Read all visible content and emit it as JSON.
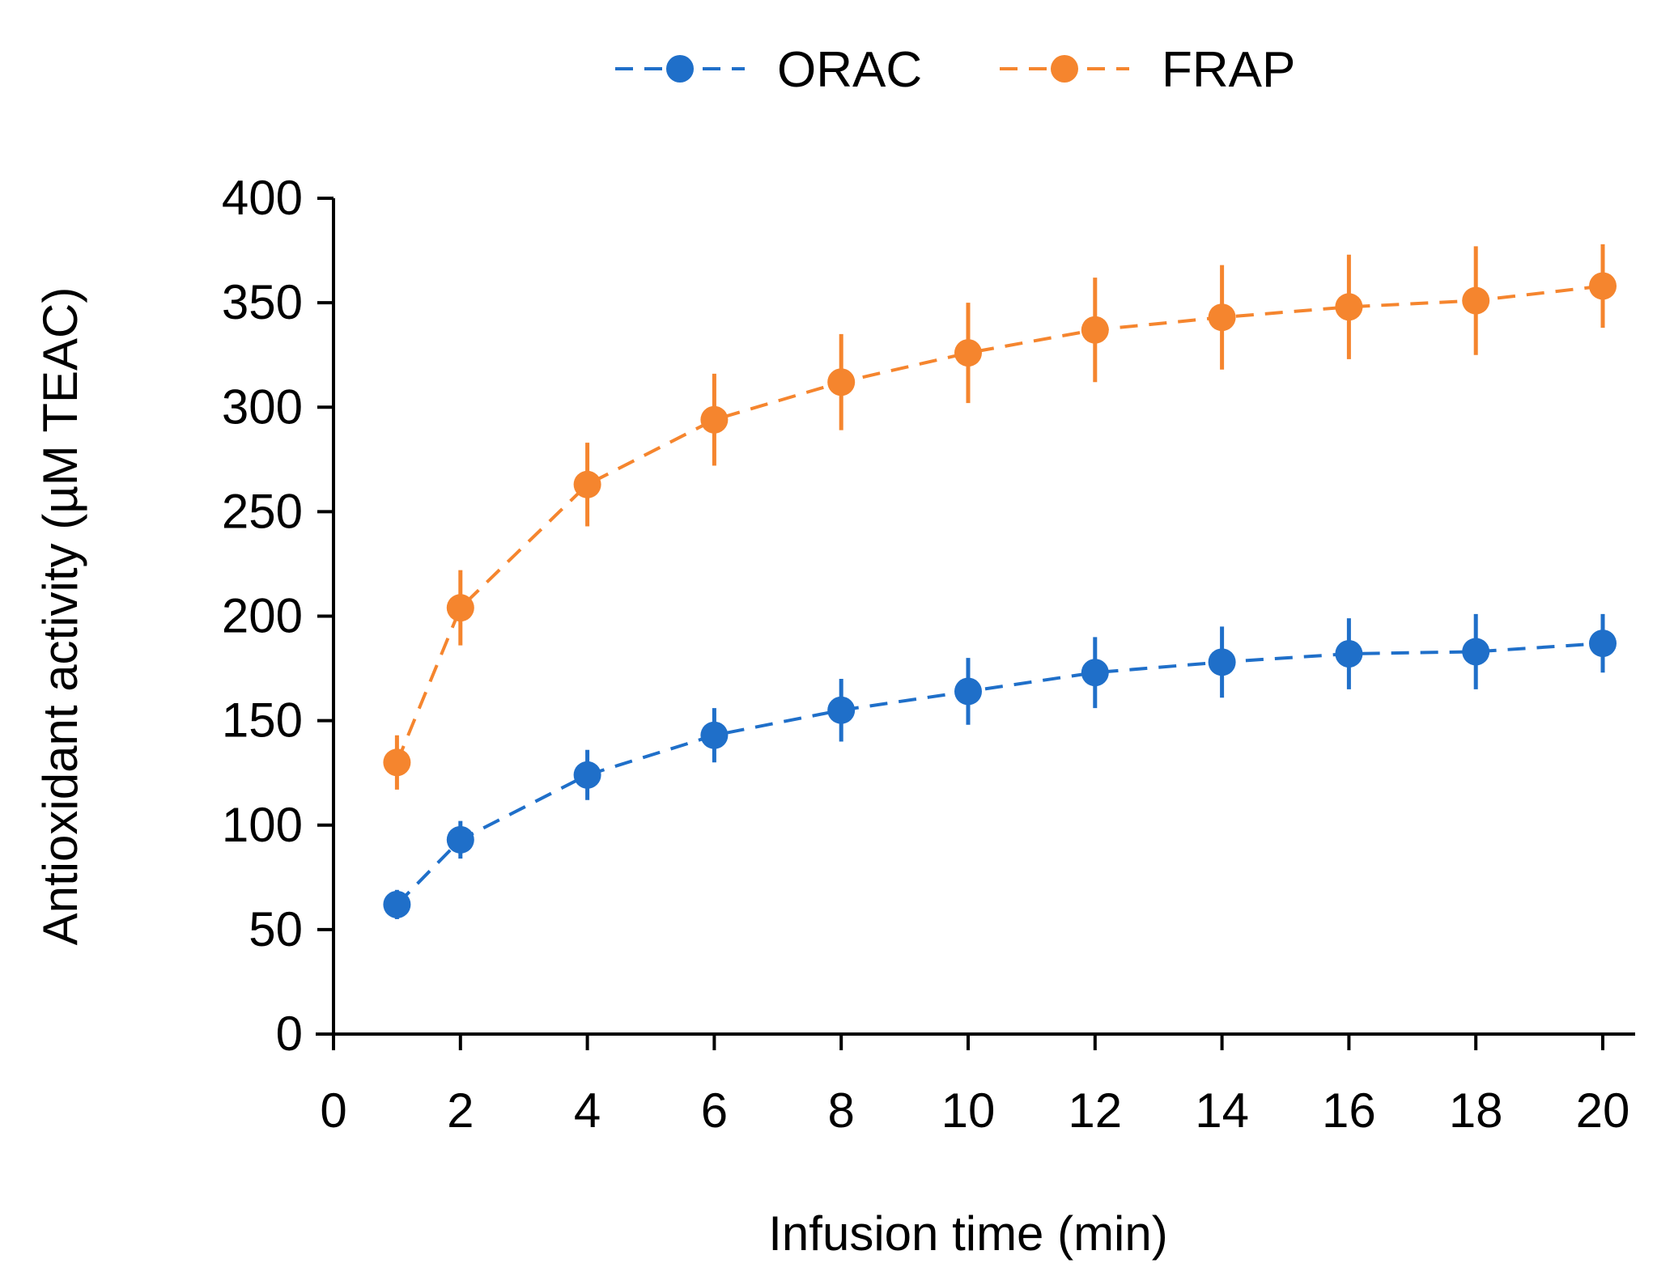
{
  "chart_data": {
    "type": "line",
    "title": "",
    "xlabel": "Infusion time (min)",
    "ylabel": "Antioxidant activity (µM TEAC)",
    "xlim": [
      0,
      20
    ],
    "ylim": [
      0,
      400
    ],
    "x_ticks": [
      0,
      2,
      4,
      6,
      8,
      10,
      12,
      14,
      16,
      18,
      20
    ],
    "y_ticks": [
      0,
      50,
      100,
      150,
      200,
      250,
      300,
      350,
      400
    ],
    "legend_position": "top-center",
    "grid": false,
    "line_style": "dashed",
    "series": [
      {
        "name": "ORAC",
        "color": "#1f6fc9",
        "x": [
          1,
          2,
          4,
          6,
          8,
          10,
          12,
          14,
          16,
          18,
          20
        ],
        "values": [
          62,
          93,
          124,
          143,
          155,
          164,
          173,
          178,
          182,
          183,
          187
        ],
        "errors": [
          7,
          9,
          12,
          13,
          15,
          16,
          17,
          17,
          17,
          18,
          14
        ]
      },
      {
        "name": "FRAP",
        "color": "#f5852e",
        "x": [
          1,
          2,
          4,
          6,
          8,
          10,
          12,
          14,
          16,
          18,
          20
        ],
        "values": [
          130,
          204,
          263,
          294,
          312,
          326,
          337,
          343,
          348,
          351,
          358
        ],
        "errors": [
          13,
          18,
          20,
          22,
          23,
          24,
          25,
          25,
          25,
          26,
          20
        ]
      }
    ]
  }
}
